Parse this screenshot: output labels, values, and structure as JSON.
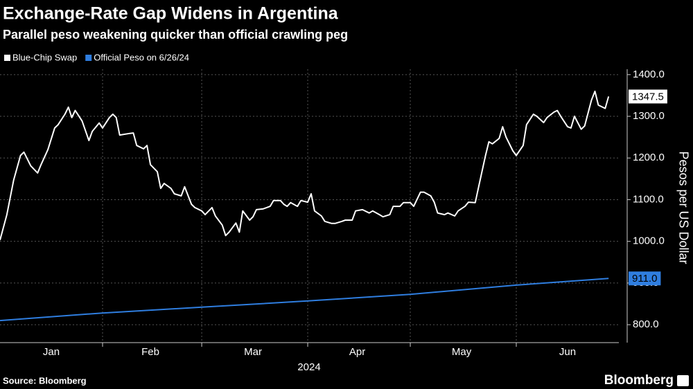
{
  "chart_data": {
    "type": "line",
    "title": "Exchange-Rate Gap Widens in Argentina",
    "subtitle": "Parallel peso weakening quicker than official crawling peg",
    "x_label": "2024",
    "y_label": "Pesos per US Dollar",
    "source": "Source: Bloomberg",
    "brand": "Bloomberg",
    "xlim": [
      2,
      183
    ],
    "xticks": [
      {
        "value": 17,
        "label": "Jan"
      },
      {
        "value": 46,
        "label": "Feb"
      },
      {
        "value": 76,
        "label": "Mar"
      },
      {
        "value": 106.5,
        "label": "Apr"
      },
      {
        "value": 137,
        "label": "May"
      },
      {
        "value": 168,
        "label": "Jun"
      }
    ],
    "xgrid": [
      32,
      61,
      92,
      122,
      153
    ],
    "ylim": [
      757,
      1413
    ],
    "yticks": [
      {
        "value": 800,
        "label": "800.0"
      },
      {
        "value": 900,
        "label": "900.0"
      },
      {
        "value": 1000,
        "label": "1000.0"
      },
      {
        "value": 1100,
        "label": "1100.0"
      },
      {
        "value": 1200,
        "label": "1200.0"
      },
      {
        "value": 1300,
        "label": "1300.0"
      },
      {
        "value": 1400,
        "label": "1400.0"
      }
    ],
    "grid": true,
    "series": [
      {
        "name": "Blue-Chip Swap",
        "color": "#ffffff",
        "x": [
          2,
          4,
          6,
          8,
          9,
          11,
          13,
          14,
          16,
          18,
          19,
          21,
          22,
          23,
          24,
          26,
          28,
          29,
          31,
          32,
          34,
          35,
          36,
          37,
          40,
          41,
          42,
          44,
          45,
          46,
          48,
          49,
          50,
          52,
          53,
          55,
          56,
          58,
          59,
          61,
          62,
          64,
          65,
          67,
          68,
          69,
          71,
          72,
          73,
          75,
          76,
          77,
          79,
          81,
          82,
          84,
          85,
          86,
          87,
          89,
          90,
          92,
          93,
          94,
          96,
          97,
          99,
          100,
          102,
          103,
          105,
          106,
          108,
          110,
          111,
          113,
          114,
          116,
          117,
          119,
          120,
          122,
          123,
          125,
          126,
          128,
          129,
          130,
          132,
          133,
          135,
          136,
          138,
          139,
          141,
          142,
          144,
          145,
          146,
          148,
          149,
          150,
          152,
          153,
          155,
          156,
          158,
          159,
          161,
          162,
          164,
          165,
          166,
          168,
          169,
          170,
          172,
          173,
          175,
          176,
          177,
          179,
          180
        ],
        "values": [
          1003,
          1064,
          1147,
          1206,
          1214,
          1181,
          1164,
          1184,
          1220,
          1272,
          1280,
          1305,
          1322,
          1297,
          1314,
          1289,
          1242,
          1264,
          1284,
          1272,
          1297,
          1305,
          1297,
          1255,
          1259,
          1260,
          1230,
          1222,
          1230,
          1184,
          1167,
          1127,
          1139,
          1127,
          1114,
          1109,
          1131,
          1089,
          1081,
          1073,
          1064,
          1081,
          1061,
          1039,
          1014,
          1022,
          1044,
          1022,
          1073,
          1051,
          1059,
          1076,
          1078,
          1084,
          1098,
          1098,
          1089,
          1084,
          1093,
          1084,
          1098,
          1094,
          1114,
          1073,
          1061,
          1048,
          1043,
          1043,
          1048,
          1051,
          1051,
          1073,
          1076,
          1068,
          1073,
          1064,
          1059,
          1064,
          1084,
          1084,
          1093,
          1093,
          1084,
          1118,
          1118,
          1109,
          1094,
          1068,
          1064,
          1068,
          1061,
          1073,
          1084,
          1094,
          1093,
          1131,
          1206,
          1239,
          1234,
          1247,
          1275,
          1250,
          1217,
          1206,
          1230,
          1280,
          1305,
          1300,
          1285,
          1297,
          1310,
          1314,
          1300,
          1275,
          1272,
          1300,
          1269,
          1277,
          1339,
          1360,
          1327,
          1319,
          1347.5
        ],
        "value_labels": [
          null,
          null,
          null,
          null,
          null,
          null,
          null,
          null,
          null,
          null,
          null,
          null,
          null,
          null,
          null,
          null,
          null,
          null,
          null,
          null,
          null,
          null,
          null,
          null,
          null,
          null,
          null,
          null,
          null,
          null,
          null,
          null,
          null,
          null,
          null,
          null,
          null,
          null,
          null,
          null,
          null,
          null,
          null,
          null,
          null,
          null,
          null,
          null,
          null,
          null,
          null,
          null,
          null,
          null,
          null,
          null,
          null,
          null,
          null,
          null,
          null,
          null,
          null,
          null,
          null,
          null,
          null,
          null,
          null,
          null,
          null,
          null,
          null,
          null,
          null,
          null,
          null,
          null,
          null,
          null,
          null,
          null,
          null,
          null,
          null,
          null,
          null,
          null,
          null,
          null,
          null,
          null,
          null,
          null,
          null,
          null,
          null,
          null,
          null,
          null,
          null,
          null,
          null,
          null,
          null,
          null,
          null,
          null,
          null,
          null,
          null,
          null,
          null,
          null,
          null,
          null,
          null,
          null,
          null,
          null,
          null,
          null,
          "1347.5"
        ]
      },
      {
        "name": "Official Peso on 6/26/24",
        "color": "#2f7ee0",
        "x": [
          2,
          32,
          61,
          92,
          122,
          153,
          180
        ],
        "values": [
          810,
          828,
          842,
          857,
          873,
          895,
          911
        ],
        "value_labels": [
          null,
          null,
          null,
          null,
          null,
          null,
          "911.0"
        ]
      }
    ]
  }
}
